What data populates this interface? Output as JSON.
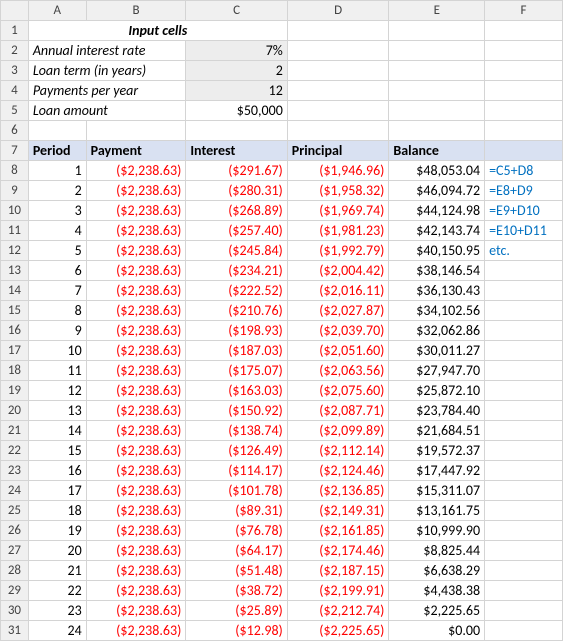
{
  "columns": [
    "A",
    "B",
    "C",
    "D",
    "E",
    "F"
  ],
  "title_row": {
    "row": 1,
    "text": "Input cells",
    "span_cols": 3
  },
  "inputs": [
    {
      "row": 2,
      "label": "Annual interest rate",
      "value": "7%",
      "shaded": true
    },
    {
      "row": 3,
      "label": "Loan term (in years)",
      "value": "2",
      "shaded": true
    },
    {
      "row": 4,
      "label": "Payments per year",
      "value": "12",
      "shaded": true
    },
    {
      "row": 5,
      "label": "Loan amount",
      "value": "$50,000",
      "shaded": false
    }
  ],
  "header": {
    "row": 7,
    "cols": [
      "Period",
      "Payment",
      "Interest",
      "Principal",
      "Balance",
      ""
    ]
  },
  "data_start_row": 8,
  "rows": [
    {
      "period": "1",
      "payment": "($2,238.63)",
      "interest": "($291.67)",
      "principal": "($1,946.96)",
      "balance": "$48,053.04",
      "f": "=C5+D8"
    },
    {
      "period": "2",
      "payment": "($2,238.63)",
      "interest": "($280.31)",
      "principal": "($1,958.32)",
      "balance": "$46,094.72",
      "f": "=E8+D9"
    },
    {
      "period": "3",
      "payment": "($2,238.63)",
      "interest": "($268.89)",
      "principal": "($1,969.74)",
      "balance": "$44,124.98",
      "f": "=E9+D10"
    },
    {
      "period": "4",
      "payment": "($2,238.63)",
      "interest": "($257.40)",
      "principal": "($1,981.23)",
      "balance": "$42,143.74",
      "f": "=E10+D11"
    },
    {
      "period": "5",
      "payment": "($2,238.63)",
      "interest": "($245.84)",
      "principal": "($1,992.79)",
      "balance": "$40,150.95",
      "f": "etc."
    },
    {
      "period": "6",
      "payment": "($2,238.63)",
      "interest": "($234.21)",
      "principal": "($2,004.42)",
      "balance": "$38,146.54",
      "f": ""
    },
    {
      "period": "7",
      "payment": "($2,238.63)",
      "interest": "($222.52)",
      "principal": "($2,016.11)",
      "balance": "$36,130.43",
      "f": ""
    },
    {
      "period": "8",
      "payment": "($2,238.63)",
      "interest": "($210.76)",
      "principal": "($2,027.87)",
      "balance": "$34,102.56",
      "f": ""
    },
    {
      "period": "9",
      "payment": "($2,238.63)",
      "interest": "($198.93)",
      "principal": "($2,039.70)",
      "balance": "$32,062.86",
      "f": ""
    },
    {
      "period": "10",
      "payment": "($2,238.63)",
      "interest": "($187.03)",
      "principal": "($2,051.60)",
      "balance": "$30,011.27",
      "f": ""
    },
    {
      "period": "11",
      "payment": "($2,238.63)",
      "interest": "($175.07)",
      "principal": "($2,063.56)",
      "balance": "$27,947.70",
      "f": ""
    },
    {
      "period": "12",
      "payment": "($2,238.63)",
      "interest": "($163.03)",
      "principal": "($2,075.60)",
      "balance": "$25,872.10",
      "f": ""
    },
    {
      "period": "13",
      "payment": "($2,238.63)",
      "interest": "($150.92)",
      "principal": "($2,087.71)",
      "balance": "$23,784.40",
      "f": ""
    },
    {
      "period": "14",
      "payment": "($2,238.63)",
      "interest": "($138.74)",
      "principal": "($2,099.89)",
      "balance": "$21,684.51",
      "f": ""
    },
    {
      "period": "15",
      "payment": "($2,238.63)",
      "interest": "($126.49)",
      "principal": "($2,112.14)",
      "balance": "$19,572.37",
      "f": ""
    },
    {
      "period": "16",
      "payment": "($2,238.63)",
      "interest": "($114.17)",
      "principal": "($2,124.46)",
      "balance": "$17,447.92",
      "f": ""
    },
    {
      "period": "17",
      "payment": "($2,238.63)",
      "interest": "($101.78)",
      "principal": "($2,136.85)",
      "balance": "$15,311.07",
      "f": ""
    },
    {
      "period": "18",
      "payment": "($2,238.63)",
      "interest": "($89.31)",
      "principal": "($2,149.31)",
      "balance": "$13,161.75",
      "f": ""
    },
    {
      "period": "19",
      "payment": "($2,238.63)",
      "interest": "($76.78)",
      "principal": "($2,161.85)",
      "balance": "$10,999.90",
      "f": ""
    },
    {
      "period": "20",
      "payment": "($2,238.63)",
      "interest": "($64.17)",
      "principal": "($2,174.46)",
      "balance": "$8,825.44",
      "f": ""
    },
    {
      "period": "21",
      "payment": "($2,238.63)",
      "interest": "($51.48)",
      "principal": "($2,187.15)",
      "balance": "$6,638.29",
      "f": ""
    },
    {
      "period": "22",
      "payment": "($2,238.63)",
      "interest": "($38.72)",
      "principal": "($2,199.91)",
      "balance": "$4,438.38",
      "f": ""
    },
    {
      "period": "23",
      "payment": "($2,238.63)",
      "interest": "($25.89)",
      "principal": "($2,212.74)",
      "balance": "$2,225.65",
      "f": ""
    },
    {
      "period": "24",
      "payment": "($2,238.63)",
      "interest": "($12.98)",
      "principal": "($2,225.65)",
      "balance": "$0.00",
      "f": ""
    }
  ],
  "colors": {
    "header_bg": "#f0f0f0",
    "border": "#d4d4d4",
    "neg": "#ff0000",
    "hdr_row_bg": "#d9e1f2",
    "shaded": "#ededed",
    "formula": "#0070c0"
  }
}
